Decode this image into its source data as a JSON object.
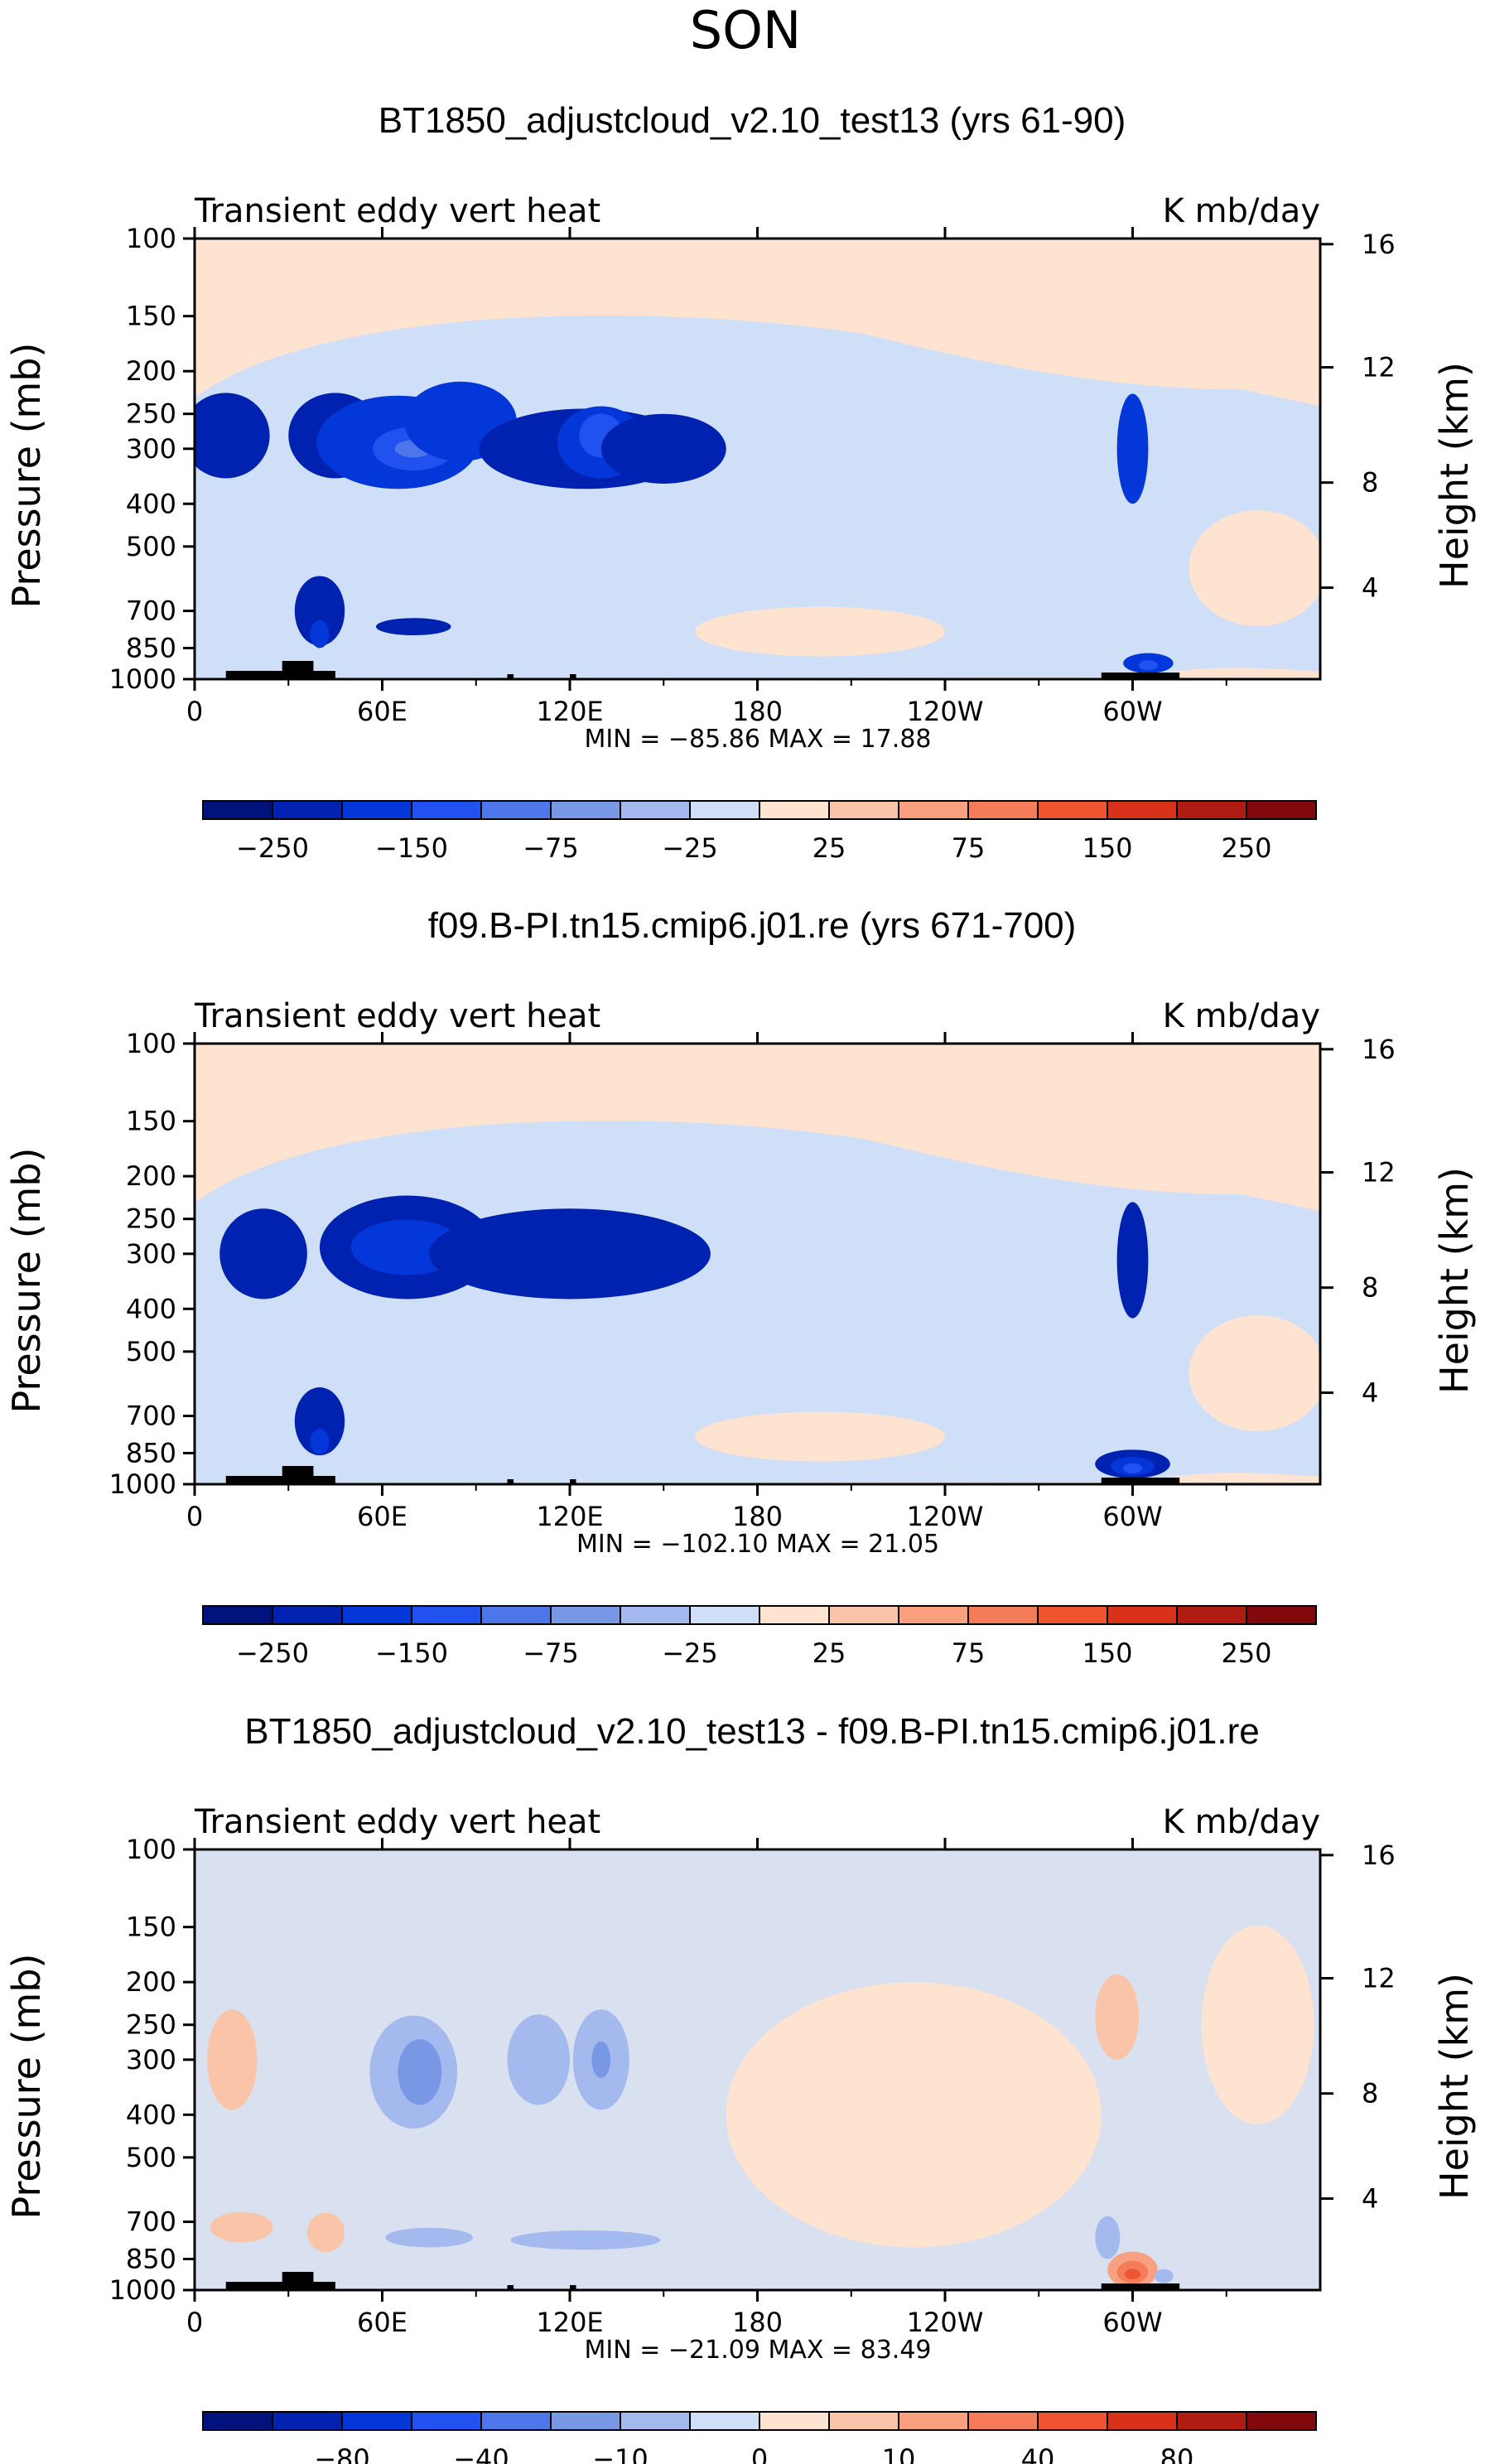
{
  "figure_title": "SON",
  "colors": {
    "background_fill": "#fde3d0",
    "frame": "#000000",
    "land": "#000000"
  },
  "chart_data": [
    {
      "type": "heatmap",
      "title": "BT1850_adjustcloud_v2.10_test13 (yrs 61-90)",
      "left_label": "Transient eddy vert heat",
      "right_label": "K mb/day",
      "ylabel": "Pressure (mb)",
      "ylabel2": "Height (km)",
      "xlabel": "",
      "x_ticks": [
        "0",
        "60E",
        "120E",
        "180",
        "120W",
        "60W"
      ],
      "x_tick_lon": [
        0,
        60,
        120,
        180,
        240,
        300
      ],
      "xlim": [
        0,
        360
      ],
      "y_ticks": [
        "100",
        "150",
        "200",
        "250",
        "300",
        "400",
        "500",
        "700",
        "850",
        "1000"
      ],
      "y_tick_p": [
        100,
        150,
        200,
        250,
        300,
        400,
        500,
        700,
        850,
        1000
      ],
      "ylim": [
        100,
        1000
      ],
      "y2_ticks": [
        "16",
        "12",
        "8",
        "4"
      ],
      "y2_tick_p": [
        103,
        196,
        358,
        620
      ],
      "stats": "MIN = −85.86   MAX =   17.88",
      "colorbar": {
        "colors": [
          "#00137d",
          "#0022b0",
          "#0437d9",
          "#2152ef",
          "#4c76ea",
          "#7898e6",
          "#a4b9ee",
          "#d0dff8",
          "#fde3d0",
          "#fac4a8",
          "#f8a07f",
          "#f47c58",
          "#ee5430",
          "#d8331a",
          "#b01b12",
          "#82090b"
        ],
        "labels": [
          "-250",
          "-150",
          "-75",
          "-25",
          "25",
          "75",
          "150",
          "250"
        ]
      },
      "contours": [
        {
          "level": 1,
          "lon": 10,
          "p": 280,
          "dlon": 14,
          "dp": 70
        },
        {
          "level": 1,
          "lon": 40,
          "p": 700,
          "dlon": 8,
          "dp": 140
        },
        {
          "level": 2,
          "lon": 40,
          "p": 790,
          "dlon": 3,
          "dp": 60
        },
        {
          "level": 1,
          "lon": 45,
          "p": 280,
          "dlon": 15,
          "dp": 70
        },
        {
          "level": 2,
          "lon": 65,
          "p": 290,
          "dlon": 26,
          "dp": 80
        },
        {
          "level": 3,
          "lon": 70,
          "p": 300,
          "dlon": 13,
          "dp": 36
        },
        {
          "level": 4,
          "lon": 70,
          "p": 300,
          "dlon": 6,
          "dp": 14
        },
        {
          "level": 2,
          "lon": 85,
          "p": 260,
          "dlon": 18,
          "dp": 60
        },
        {
          "level": 1,
          "lon": 125,
          "p": 300,
          "dlon": 34,
          "dp": 70
        },
        {
          "level": 2,
          "lon": 130,
          "p": 290,
          "dlon": 14,
          "dp": 60
        },
        {
          "level": 3,
          "lon": 130,
          "p": 280,
          "dlon": 7,
          "dp": 34
        },
        {
          "level": 1,
          "lon": 70,
          "p": 760,
          "dlon": 12,
          "dp": 35
        },
        {
          "level": 1,
          "lon": 150,
          "p": 300,
          "dlon": 20,
          "dp": 60
        },
        {
          "level": 2,
          "lon": 300,
          "p": 300,
          "dlon": 5,
          "dp": 100
        },
        {
          "level": 2,
          "lon": 305,
          "p": 920,
          "dlon": 8,
          "dp": 50
        },
        {
          "level": 3,
          "lon": 305,
          "p": 930,
          "dlon": 3,
          "dp": 25
        }
      ]
    },
    {
      "type": "heatmap",
      "title": "f09.B-PI.tn15.cmip6.j01.re (yrs 671-700)",
      "left_label": "Transient eddy vert heat",
      "right_label": "K mb/day",
      "ylabel": "Pressure (mb)",
      "ylabel2": "Height (km)",
      "xlabel": "",
      "x_ticks": [
        "0",
        "60E",
        "120E",
        "180",
        "120W",
        "60W"
      ],
      "x_tick_lon": [
        0,
        60,
        120,
        180,
        240,
        300
      ],
      "xlim": [
        0,
        360
      ],
      "y_ticks": [
        "100",
        "150",
        "200",
        "250",
        "300",
        "400",
        "500",
        "700",
        "850",
        "1000"
      ],
      "y_tick_p": [
        100,
        150,
        200,
        250,
        300,
        400,
        500,
        700,
        850,
        1000
      ],
      "ylim": [
        100,
        1000
      ],
      "y2_ticks": [
        "16",
        "12",
        "8",
        "4"
      ],
      "y2_tick_p": [
        103,
        196,
        358,
        620
      ],
      "stats": "MIN = −102.10   MAX =   21.05",
      "colorbar": {
        "colors": [
          "#00137d",
          "#0022b0",
          "#0437d9",
          "#2152ef",
          "#4c76ea",
          "#7898e6",
          "#a4b9ee",
          "#d0dff8",
          "#fde3d0",
          "#fac4a8",
          "#f8a07f",
          "#f47c58",
          "#ee5430",
          "#d8331a",
          "#b01b12",
          "#82090b"
        ],
        "labels": [
          "-250",
          "-150",
          "-75",
          "-25",
          "25",
          "75",
          "150",
          "250"
        ]
      },
      "contours": [
        {
          "level": 1,
          "lon": 22,
          "p": 300,
          "dlon": 14,
          "dp": 80
        },
        {
          "level": 1,
          "lon": 40,
          "p": 720,
          "dlon": 8,
          "dp": 140
        },
        {
          "level": 2,
          "lon": 40,
          "p": 800,
          "dlon": 3,
          "dp": 55
        },
        {
          "level": 1,
          "lon": 68,
          "p": 290,
          "dlon": 28,
          "dp": 90
        },
        {
          "level": 2,
          "lon": 68,
          "p": 290,
          "dlon": 18,
          "dp": 45
        },
        {
          "level": 1,
          "lon": 120,
          "p": 300,
          "dlon": 45,
          "dp": 80
        },
        {
          "level": 1,
          "lon": 300,
          "p": 310,
          "dlon": 5,
          "dp": 110
        },
        {
          "level": 1,
          "lon": 300,
          "p": 900,
          "dlon": 12,
          "dp": 70
        },
        {
          "level": 2,
          "lon": 300,
          "p": 910,
          "dlon": 7,
          "dp": 45
        },
        {
          "level": 3,
          "lon": 300,
          "p": 920,
          "dlon": 3,
          "dp": 25
        }
      ]
    },
    {
      "type": "heatmap",
      "title": "BT1850_adjustcloud_v2.10_test13 - f09.B-PI.tn15.cmip6.j01.re",
      "left_label": "Transient eddy vert heat",
      "right_label": "K mb/day",
      "ylabel": "Pressure (mb)",
      "ylabel2": "Height (km)",
      "xlabel": "",
      "x_ticks": [
        "0",
        "60E",
        "120E",
        "180",
        "120W",
        "60W"
      ],
      "x_tick_lon": [
        0,
        60,
        120,
        180,
        240,
        300
      ],
      "xlim": [
        0,
        360
      ],
      "y_ticks": [
        "100",
        "150",
        "200",
        "250",
        "300",
        "400",
        "500",
        "700",
        "850",
        "1000"
      ],
      "y_tick_p": [
        100,
        150,
        200,
        250,
        300,
        400,
        500,
        700,
        850,
        1000
      ],
      "ylim": [
        100,
        1000
      ],
      "y2_ticks": [
        "16",
        "12",
        "8",
        "4"
      ],
      "y2_tick_p": [
        103,
        196,
        358,
        620
      ],
      "stats": "MIN = −21.09   MAX =   83.49",
      "colorbar": {
        "colors": [
          "#00137d",
          "#0022b0",
          "#0437d9",
          "#2152ef",
          "#4c76ea",
          "#7898e6",
          "#a4b9ee",
          "#d0dff8",
          "#fde3d0",
          "#fac4a8",
          "#f8a07f",
          "#f47c58",
          "#ee5430",
          "#d8331a",
          "#b01b12",
          "#82090b"
        ],
        "labels": [
          "-80",
          "-40",
          "-10",
          "0",
          "10",
          "40",
          "80"
        ]
      },
      "contours": [
        {
          "level": 9,
          "lon": 12,
          "p": 300,
          "dlon": 8,
          "dp": 90
        },
        {
          "level": 9,
          "lon": 15,
          "p": 720,
          "dlon": 10,
          "dp": 60
        },
        {
          "level": 9,
          "lon": 42,
          "p": 740,
          "dlon": 6,
          "dp": 80
        },
        {
          "level": 6,
          "lon": 70,
          "p": 320,
          "dlon": 14,
          "dp": 110
        },
        {
          "level": 5,
          "lon": 72,
          "p": 320,
          "dlon": 7,
          "dp": 60
        },
        {
          "level": 6,
          "lon": 75,
          "p": 760,
          "dlon": 14,
          "dp": 40
        },
        {
          "level": 6,
          "lon": 110,
          "p": 300,
          "dlon": 10,
          "dp": 80
        },
        {
          "level": 6,
          "lon": 130,
          "p": 300,
          "dlon": 9,
          "dp": 90
        },
        {
          "level": 5,
          "lon": 130,
          "p": 300,
          "dlon": 3,
          "dp": 30
        },
        {
          "level": 6,
          "lon": 125,
          "p": 770,
          "dlon": 24,
          "dp": 40
        },
        {
          "level": 9,
          "lon": 295,
          "p": 240,
          "dlon": 7,
          "dp": 60
        },
        {
          "level": 6,
          "lon": 292,
          "p": 760,
          "dlon": 4,
          "dp": 90
        },
        {
          "level": 10,
          "lon": 300,
          "p": 900,
          "dlon": 8,
          "dp": 90
        },
        {
          "level": 11,
          "lon": 300,
          "p": 910,
          "dlon": 5,
          "dp": 55
        },
        {
          "level": 12,
          "lon": 300,
          "p": 920,
          "dlon": 2.5,
          "dp": 25
        },
        {
          "level": 6,
          "lon": 310,
          "p": 930,
          "dlon": 3,
          "dp": 35
        }
      ]
    }
  ]
}
